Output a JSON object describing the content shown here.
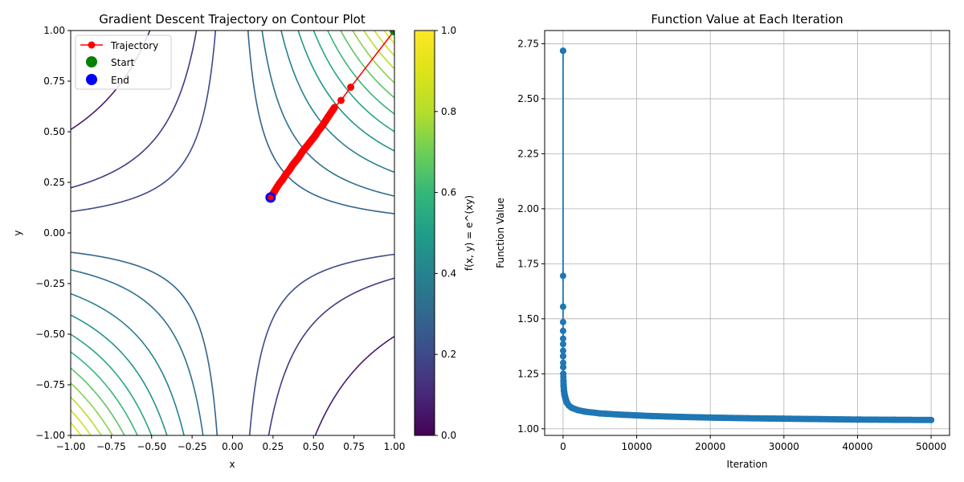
{
  "chart_data": [
    {
      "type": "contour",
      "title": "Gradient Descent Trajectory on Contour Plot",
      "xlabel": "x",
      "ylabel": "y",
      "xlim": [
        -1.0,
        1.0
      ],
      "ylim": [
        -1.0,
        1.0
      ],
      "x_ticks": [
        "−1.00",
        "−0.75",
        "−0.50",
        "−0.25",
        "0.00",
        "0.25",
        "0.50",
        "0.75",
        "1.00"
      ],
      "y_ticks": [
        "−1.00",
        "−0.75",
        "−0.50",
        "−0.25",
        "0.00",
        "0.25",
        "0.50",
        "0.75",
        "1.00"
      ],
      "contour_levels": [
        0.6,
        0.8,
        0.9,
        1.1,
        1.2,
        1.35,
        1.5,
        1.65,
        1.8,
        1.95,
        2.1,
        2.25,
        2.4,
        2.55,
        2.7
      ],
      "colormap": "viridis",
      "colorbar": {
        "label": "f(x, y) = e^(xy)",
        "ticks": [
          "0.0",
          "0.2",
          "0.4",
          "0.6",
          "0.8",
          "1.0"
        ],
        "range": [
          0.0,
          1.0
        ]
      },
      "legend": {
        "placement": "upper-left",
        "entries": [
          "Trajectory",
          "Start",
          "End"
        ]
      },
      "trajectory": {
        "name": "Trajectory",
        "color": "#ff0000",
        "start": {
          "x": 1.0,
          "y": 1.0
        },
        "end": {
          "x": 0.235,
          "y": 0.175
        },
        "points": [
          {
            "x": 1.0,
            "y": 1.0
          },
          {
            "x": 0.73,
            "y": 0.72
          },
          {
            "x": 0.67,
            "y": 0.655
          },
          {
            "x": 0.63,
            "y": 0.62
          },
          {
            "x": 0.6,
            "y": 0.585
          },
          {
            "x": 0.575,
            "y": 0.555
          },
          {
            "x": 0.555,
            "y": 0.53
          },
          {
            "x": 0.53,
            "y": 0.505
          },
          {
            "x": 0.51,
            "y": 0.48
          },
          {
            "x": 0.49,
            "y": 0.46
          },
          {
            "x": 0.47,
            "y": 0.44
          },
          {
            "x": 0.45,
            "y": 0.42
          },
          {
            "x": 0.43,
            "y": 0.4
          },
          {
            "x": 0.41,
            "y": 0.375
          },
          {
            "x": 0.39,
            "y": 0.355
          },
          {
            "x": 0.37,
            "y": 0.335
          },
          {
            "x": 0.35,
            "y": 0.31
          },
          {
            "x": 0.33,
            "y": 0.29
          },
          {
            "x": 0.31,
            "y": 0.265
          },
          {
            "x": 0.29,
            "y": 0.245
          },
          {
            "x": 0.27,
            "y": 0.22
          },
          {
            "x": 0.255,
            "y": 0.2
          },
          {
            "x": 0.245,
            "y": 0.188
          },
          {
            "x": 0.235,
            "y": 0.175
          }
        ]
      },
      "colors": {
        "start": "#008000",
        "end": "#0000ff"
      }
    },
    {
      "type": "line",
      "title": "Function Value at Each Iteration",
      "xlabel": "Iteration",
      "ylabel": "Function Value",
      "xlim": [
        -2500,
        52500
      ],
      "ylim": [
        0.97,
        2.81
      ],
      "x_ticks": [
        0,
        10000,
        20000,
        30000,
        40000,
        50000
      ],
      "y_ticks": [
        "1.00",
        "1.25",
        "1.50",
        "1.75",
        "2.00",
        "2.25",
        "2.50",
        "2.75"
      ],
      "grid": true,
      "color": "#1f77b4",
      "series": [
        {
          "x": [
            0,
            1,
            2,
            3,
            4,
            5,
            6,
            8,
            10,
            15,
            20,
            30,
            50,
            80,
            120,
            200,
            350,
            500,
            800,
            1200,
            2000,
            3000,
            5000,
            8000,
            12000,
            16000,
            20000,
            25000,
            30000,
            35000,
            40000,
            45000,
            50000
          ],
          "y": [
            2.718,
            1.695,
            1.555,
            1.485,
            1.445,
            1.41,
            1.385,
            1.355,
            1.33,
            1.3,
            1.28,
            1.25,
            1.22,
            1.195,
            1.175,
            1.155,
            1.135,
            1.12,
            1.105,
            1.095,
            1.085,
            1.078,
            1.07,
            1.064,
            1.058,
            1.054,
            1.051,
            1.048,
            1.046,
            1.044,
            1.042,
            1.041,
            1.04
          ]
        }
      ]
    }
  ]
}
